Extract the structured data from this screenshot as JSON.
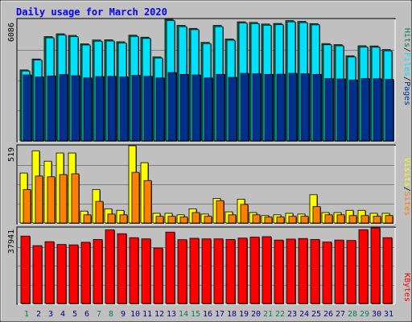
{
  "chart_data": [
    {
      "type": "bar",
      "title": "Daily usage for March 2020",
      "categories": [
        "1",
        "2",
        "3",
        "4",
        "5",
        "6",
        "7",
        "8",
        "9",
        "10",
        "11",
        "12",
        "13",
        "14",
        "15",
        "16",
        "17",
        "18",
        "19",
        "20",
        "21",
        "22",
        "23",
        "24",
        "25",
        "26",
        "27",
        "28",
        "29",
        "30",
        "31"
      ],
      "weekend_days": [
        "1",
        "7",
        "8",
        "14",
        "15",
        "21",
        "22",
        "28",
        "29"
      ],
      "max_label": "6086",
      "ylim": [
        0,
        6086
      ],
      "right_labels": [
        "Pages",
        "Files",
        "Hits"
      ],
      "series": [
        {
          "name": "Hits",
          "color": "#00805c",
          "values": [
            3550,
            4100,
            5220,
            5360,
            5280,
            4860,
            5050,
            5060,
            4960,
            5290,
            5190,
            4200,
            6086,
            5780,
            5630,
            4930,
            5780,
            5100,
            5960,
            5930,
            5850,
            5880,
            6020,
            5980,
            5870,
            4870,
            4820,
            4260,
            4760,
            4750,
            4570
          ]
        },
        {
          "name": "Files",
          "color": "#00e0ff",
          "values": [
            3500,
            4050,
            5160,
            5300,
            5220,
            4800,
            4990,
            5000,
            4900,
            5230,
            5130,
            4150,
            6020,
            5720,
            5570,
            4870,
            5720,
            5040,
            5900,
            5870,
            5790,
            5820,
            5960,
            5920,
            5810,
            4810,
            4760,
            4200,
            4700,
            4690,
            4510
          ]
        },
        {
          "name": "Pages",
          "color": "#00308c",
          "values": [
            3300,
            3200,
            3250,
            3320,
            3260,
            3150,
            3220,
            3230,
            3200,
            3280,
            3230,
            3150,
            3420,
            3330,
            3300,
            3150,
            3330,
            3180,
            3380,
            3360,
            3330,
            3340,
            3380,
            3360,
            3330,
            3120,
            3100,
            3050,
            3120,
            3110,
            3080
          ]
        }
      ]
    },
    {
      "type": "bar",
      "max_label": "519",
      "ylim": [
        0,
        519
      ],
      "right_labels": [
        "Sites",
        "Visits"
      ],
      "series": [
        {
          "name": "Visits",
          "color": "#ffff00",
          "values": [
            335,
            485,
            415,
            470,
            470,
            80,
            225,
            95,
            85,
            519,
            405,
            65,
            65,
            55,
            95,
            60,
            165,
            75,
            160,
            70,
            50,
            55,
            65,
            60,
            190,
            70,
            70,
            85,
            85,
            65,
            65
          ]
        },
        {
          "name": "Sites",
          "color": "#ff8000",
          "values": [
            225,
            315,
            310,
            325,
            330,
            55,
            145,
            60,
            55,
            340,
            285,
            45,
            45,
            40,
            70,
            45,
            150,
            55,
            125,
            55,
            40,
            40,
            45,
            45,
            110,
            55,
            55,
            50,
            50,
            45,
            50
          ]
        }
      ]
    },
    {
      "type": "bar",
      "max_label": "37941",
      "ylim": [
        0,
        37941
      ],
      "right_labels": [
        "KBytes"
      ],
      "series": [
        {
          "name": "KBytes",
          "color": "#ff0000",
          "values": [
            33800,
            29000,
            31000,
            29600,
            29400,
            30700,
            32100,
            36900,
            35000,
            33000,
            32400,
            27800,
            35800,
            32000,
            32700,
            32400,
            32400,
            32100,
            32800,
            33300,
            33500,
            31800,
            32300,
            32600,
            32100,
            30800,
            31800,
            31600,
            37000,
            37941,
            33000
          ]
        }
      ]
    }
  ]
}
